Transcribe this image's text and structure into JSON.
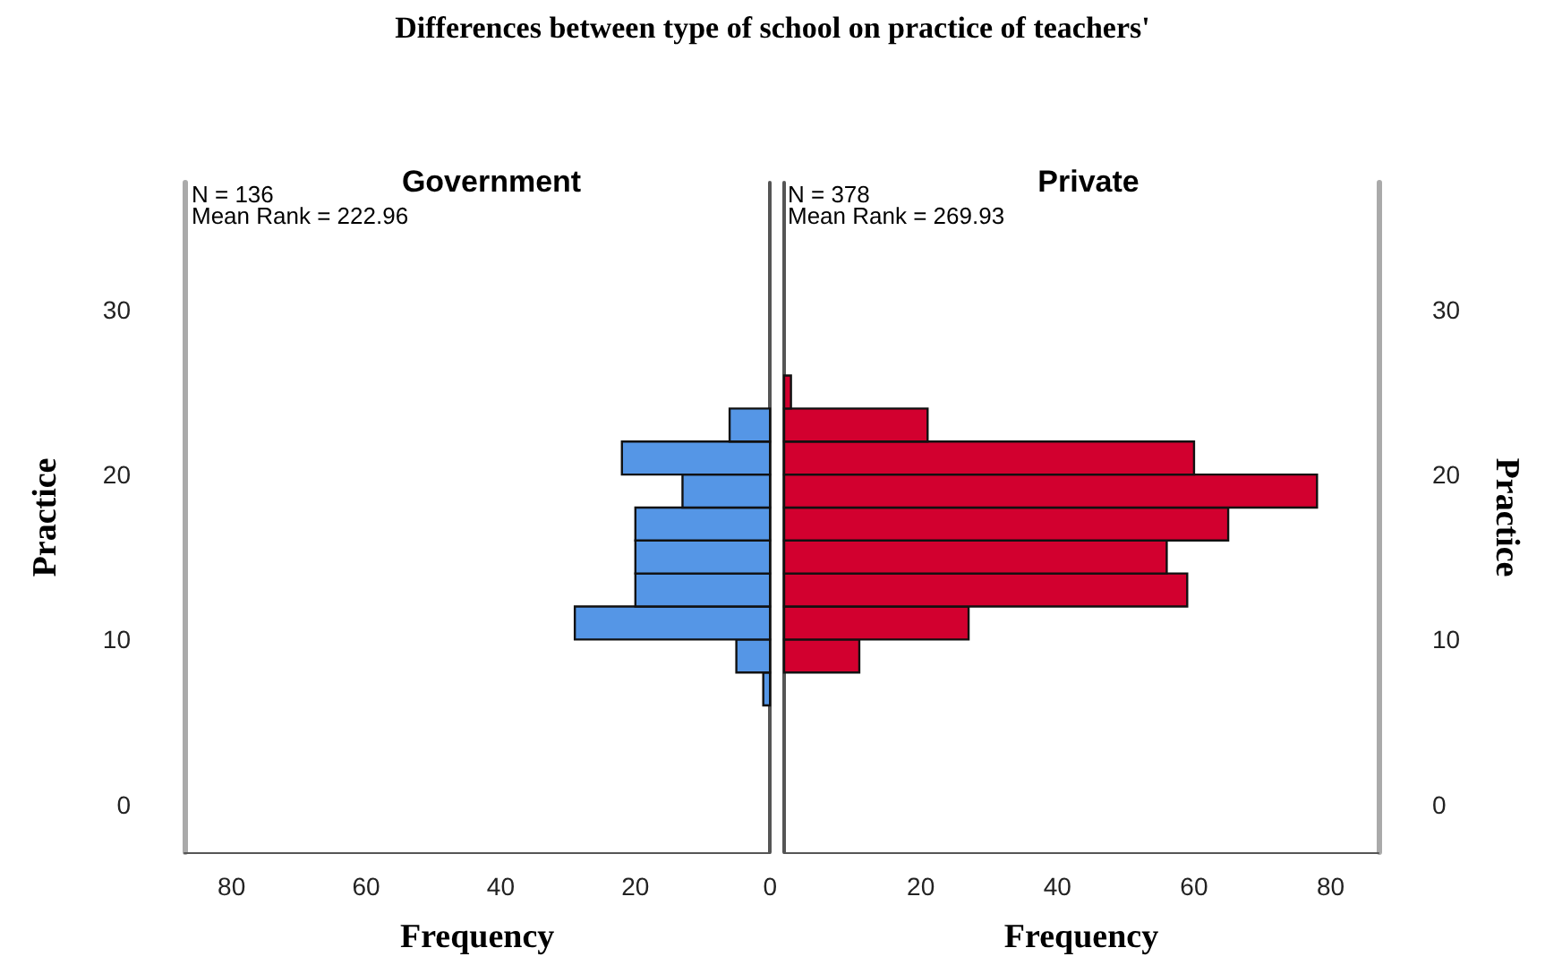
{
  "chart_data": [
    {
      "type": "histogram",
      "orientation": "horizontal",
      "title": "Differences between type of school on practice of teachers'",
      "subtitle": "Government",
      "xlabel": "Frequency",
      "ylabel": "Practice",
      "annotations": [
        "N = 136",
        "Mean Rank = 222.96"
      ],
      "bins": [
        6,
        8,
        10,
        12,
        14,
        16,
        18,
        20,
        22,
        24,
        26
      ],
      "values": [
        1,
        5,
        29,
        20,
        20,
        20,
        13,
        22,
        6,
        0
      ],
      "color": "#5596e6",
      "xlim": [
        87,
        0
      ],
      "xticks": [
        0,
        20,
        40,
        60,
        80
      ],
      "ylim": [
        -2.9,
        37.7
      ],
      "yticks": [
        0,
        10,
        20,
        30
      ]
    },
    {
      "type": "histogram",
      "orientation": "horizontal",
      "subtitle": "Private",
      "xlabel": "Frequency",
      "ylabel": "Practice",
      "annotations": [
        "N = 378",
        "Mean Rank = 269.93"
      ],
      "bins": [
        6,
        8,
        10,
        12,
        14,
        16,
        18,
        20,
        22,
        24,
        26
      ],
      "values": [
        0,
        11,
        27,
        59,
        56,
        65,
        78,
        60,
        21,
        1
      ],
      "color": "#d2002f",
      "xlim": [
        0,
        87
      ],
      "xticks": [
        {
          "value": 0,
          "label": null
        },
        20,
        40,
        60,
        80
      ],
      "ylim": [
        -2.9,
        37.7
      ],
      "yticks": [
        0,
        10,
        20,
        30
      ]
    }
  ]
}
